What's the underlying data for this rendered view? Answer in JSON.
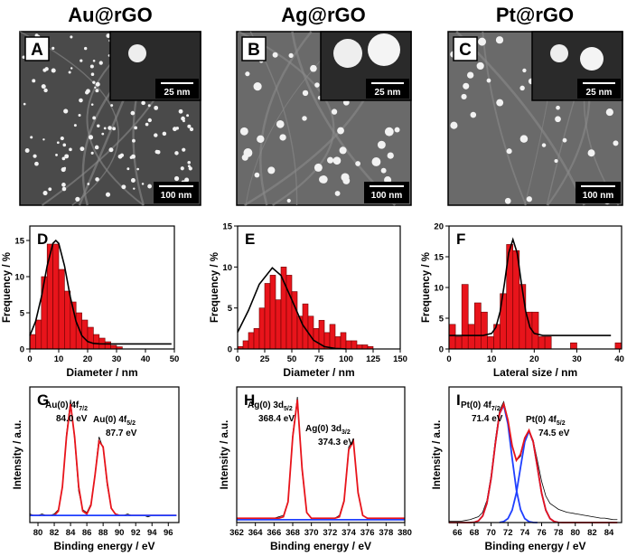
{
  "columns": [
    "Au@rGO",
    "Ag@rGO",
    "Pt@rGO"
  ],
  "images": [
    {
      "letter": "A",
      "inset_scale": "25 nm",
      "scale": "100 nm"
    },
    {
      "letter": "B",
      "inset_scale": "25 nm",
      "scale": "100 nm"
    },
    {
      "letter": "C",
      "inset_scale": "25 nm",
      "scale": "100 nm"
    }
  ],
  "chart_data": [
    {
      "type": "histogram",
      "letter": "D",
      "xlabel": "Diameter / nm",
      "ylabel": "Frequency / %",
      "color": "#e8141b",
      "bins": [
        0,
        2,
        4,
        6,
        8,
        10,
        12,
        14,
        16,
        18,
        20,
        22,
        24,
        26,
        28,
        30,
        32
      ],
      "values": [
        2,
        4,
        10,
        14.5,
        14.5,
        11,
        8,
        6.5,
        5,
        4,
        3,
        2,
        1.5,
        1,
        0.5,
        0.3
      ],
      "xlim": [
        0,
        50
      ],
      "xticks": [
        0,
        10,
        20,
        30,
        40,
        50
      ],
      "ylim": [
        0,
        17
      ],
      "yticks": [
        0,
        5,
        10,
        15
      ],
      "fit": {
        "color": "#000000",
        "x": [
          0,
          2,
          4,
          6,
          8,
          9,
          10,
          12,
          14,
          16,
          18,
          20,
          22,
          24,
          30,
          49
        ],
        "values": [
          1.84,
          3.8,
          7.2,
          11.5,
          14.6,
          15.0,
          14.6,
          11.5,
          7.2,
          3.8,
          1.84,
          1.03,
          0.77,
          0.71,
          0.7,
          0.7
        ]
      }
    },
    {
      "type": "histogram",
      "letter": "E",
      "xlabel": "Diameter / nm",
      "ylabel": "Frequency / %",
      "color": "#e8141b",
      "bins": [
        0,
        5,
        10,
        15,
        20,
        25,
        30,
        35,
        40,
        45,
        50,
        55,
        60,
        65,
        70,
        75,
        80,
        85,
        90,
        95,
        100,
        105,
        110,
        115,
        120,
        125
      ],
      "values": [
        0.3,
        1,
        2,
        2.5,
        5,
        8,
        9,
        6,
        10,
        9,
        7,
        4,
        5.5,
        4,
        2.5,
        3.5,
        2,
        3,
        1.5,
        2,
        1,
        1,
        0.5,
        0.5,
        0.3
      ],
      "xlim": [
        0,
        150
      ],
      "xticks": [
        0,
        25,
        50,
        75,
        100,
        125,
        150
      ],
      "ylim": [
        0,
        15
      ],
      "yticks": [
        0,
        5,
        10,
        15
      ],
      "fit": {
        "color": "#000000",
        "x": [
          0,
          10,
          20,
          32,
          40,
          50,
          60,
          70,
          80,
          90,
          100
        ],
        "values": [
          2.04,
          4.7,
          7.9,
          9.9,
          8.97,
          6.0,
          2.95,
          1.07,
          0.29,
          0.06,
          0.01
        ]
      }
    },
    {
      "type": "histogram",
      "letter": "F",
      "xlabel": "Lateral size / nm",
      "ylabel": "Frequency / %",
      "color": "#e8141b",
      "bins": [
        0,
        1.5,
        3,
        4.5,
        6,
        7.5,
        9,
        10.5,
        12,
        13.5,
        15,
        16.5,
        18,
        19.5,
        21,
        22.5,
        24,
        25.5,
        27,
        28.5,
        30,
        31.5,
        33,
        34.5,
        36,
        37.5,
        39,
        40.5
      ],
      "values": [
        4,
        2,
        10.5,
        4,
        7.5,
        6,
        2,
        4,
        9,
        17,
        16,
        10.5,
        6,
        6,
        2,
        2,
        0,
        0,
        0,
        1,
        0,
        0,
        0,
        0,
        0,
        0,
        1
      ],
      "xlim": [
        0,
        40.5
      ],
      "xticks": [
        0,
        10,
        20,
        30,
        40
      ],
      "ylim": [
        0,
        20
      ],
      "yticks": [
        0,
        5,
        10,
        15,
        20
      ],
      "fit": {
        "color": "#000000",
        "x": [
          0,
          8,
          10,
          11,
          12,
          13,
          14,
          15,
          16,
          17,
          18,
          19,
          20,
          22,
          38
        ],
        "values": [
          2.2,
          2.2,
          2.53,
          3.5,
          6.1,
          10.6,
          15.6,
          17.8,
          15.6,
          10.6,
          6.1,
          3.5,
          2.53,
          2.2,
          2.2
        ]
      }
    },
    {
      "type": "line",
      "letter": "G",
      "xlabel": "Binding energy / eV",
      "ylabel": "Intensity / a.u.",
      "x": [
        79,
        79.5,
        80,
        80.5,
        81,
        81.5,
        82,
        82.5,
        83,
        83.5,
        84,
        84.5,
        85,
        85.5,
        86,
        86.5,
        87,
        87.5,
        88,
        88.5,
        89,
        89.5,
        90,
        90.5,
        91,
        91.5,
        92,
        92.5,
        93,
        93.5,
        94,
        94.5,
        95,
        95.5,
        96,
        96.5,
        97
      ],
      "xlim": [
        79,
        97.3
      ],
      "xticks": [
        80,
        82,
        84,
        86,
        88,
        90,
        92,
        94,
        96
      ],
      "ylim": [
        0,
        0.95
      ],
      "series": [
        {
          "color": "#000000",
          "values": [
            0.06,
            0.05,
            0.05,
            0.06,
            0.05,
            0.05,
            0.06,
            0.09,
            0.24,
            0.62,
            0.86,
            0.58,
            0.22,
            0.09,
            0.07,
            0.13,
            0.34,
            0.6,
            0.52,
            0.26,
            0.1,
            0.06,
            0.05,
            0.05,
            0.06,
            0.05,
            0.05,
            0.05,
            0.05,
            0.04,
            0.05,
            0.05,
            0.05,
            0.05,
            0.05,
            0.05,
            0.05
          ]
        },
        {
          "color": "#e8141b",
          "values": [
            0.05,
            0.05,
            0.05,
            0.05,
            0.05,
            0.05,
            0.05,
            0.08,
            0.25,
            0.6,
            0.83,
            0.6,
            0.25,
            0.08,
            0.06,
            0.12,
            0.33,
            0.57,
            0.53,
            0.28,
            0.1,
            0.06,
            0.05,
            0.05,
            0.05,
            0.05,
            0.05,
            0.05,
            0.05,
            0.05,
            0.05,
            0.05,
            0.05,
            0.05,
            0.05,
            0.05,
            0.05
          ]
        },
        {
          "color": "#1f3fff",
          "x": [
            79,
            97
          ],
          "values": [
            0.05,
            0.05
          ]
        }
      ],
      "annotations": [
        {
          "text": "Au(0) 4f",
          "subscript": "7/2",
          "energy": "84.0 eV"
        },
        {
          "text": "Au(0) 4f",
          "subscript": "5/2",
          "energy": "87.7 eV"
        }
      ]
    },
    {
      "type": "line",
      "letter": "H",
      "xlabel": "Binding energy / eV",
      "ylabel": "Intensity / a.u.",
      "x": [
        362,
        362.5,
        363,
        363.5,
        364,
        364.5,
        365,
        365.5,
        366,
        366.5,
        367,
        367.5,
        368,
        368.5,
        369,
        369.5,
        370,
        370.5,
        371,
        371.5,
        372,
        372.5,
        373,
        373.5,
        374,
        374.5,
        375,
        375.5,
        376,
        376.5,
        377,
        377.5,
        378,
        378.5,
        379,
        379.5,
        380
      ],
      "xlim": [
        362,
        380
      ],
      "xticks": [
        362,
        364,
        366,
        368,
        370,
        372,
        374,
        376,
        378,
        380
      ],
      "ylim": [
        0,
        0.95
      ],
      "series": [
        {
          "color": "#000000",
          "values": [
            0.03,
            0.03,
            0.03,
            0.03,
            0.03,
            0.03,
            0.03,
            0.03,
            0.03,
            0.04,
            0.05,
            0.15,
            0.62,
            0.88,
            0.36,
            0.07,
            0.03,
            0.03,
            0.03,
            0.03,
            0.03,
            0.03,
            0.05,
            0.16,
            0.53,
            0.58,
            0.2,
            0.05,
            0.03,
            0.03,
            0.03,
            0.03,
            0.03,
            0.03,
            0.03,
            0.03,
            0.03
          ]
        },
        {
          "color": "#e8141b",
          "values": [
            0.03,
            0.03,
            0.03,
            0.03,
            0.03,
            0.03,
            0.03,
            0.03,
            0.03,
            0.03,
            0.04,
            0.145,
            0.6,
            0.86,
            0.38,
            0.07,
            0.03,
            0.03,
            0.03,
            0.03,
            0.03,
            0.03,
            0.04,
            0.15,
            0.51,
            0.57,
            0.21,
            0.05,
            0.03,
            0.03,
            0.03,
            0.03,
            0.03,
            0.03,
            0.03,
            0.03,
            0.03
          ]
        },
        {
          "color": "#1f3fff",
          "x": [
            362,
            380
          ],
          "values": [
            0.02,
            0.02
          ]
        }
      ],
      "annotations": [
        {
          "text": "Ag(0) 3d",
          "subscript": "5/2",
          "energy": "368.4 eV"
        },
        {
          "text": "Ag(0) 3d",
          "subscript": "3/2",
          "energy": "374.3 eV"
        }
      ]
    },
    {
      "type": "line",
      "letter": "I",
      "xlabel": "Binding energy / eV",
      "ylabel": "Intensity / a.u.",
      "x": [
        65,
        65.5,
        66,
        66.5,
        67,
        67.5,
        68,
        68.5,
        69,
        69.5,
        70,
        70.5,
        71,
        71.5,
        72,
        72.5,
        73,
        73.5,
        74,
        74.5,
        75,
        75.5,
        76,
        76.5,
        77,
        77.5,
        78,
        78.5,
        79,
        79.5,
        80,
        80.5,
        81,
        81.5,
        82,
        82.5,
        83,
        83.5,
        84,
        84.5,
        85
      ],
      "xlim": [
        65,
        85.5
      ],
      "xticks": [
        66,
        68,
        70,
        72,
        74,
        76,
        78,
        80,
        82,
        84
      ],
      "ylim": [
        0,
        0.92
      ],
      "series": [
        {
          "color": "#000000",
          "values": [
            0.01,
            0.01,
            0.01,
            0.01,
            0.015,
            0.02,
            0.03,
            0.04,
            0.07,
            0.15,
            0.32,
            0.56,
            0.76,
            0.82,
            0.7,
            0.52,
            0.42,
            0.45,
            0.57,
            0.62,
            0.56,
            0.42,
            0.28,
            0.18,
            0.13,
            0.11,
            0.09,
            0.08,
            0.07,
            0.065,
            0.06,
            0.055,
            0.05,
            0.045,
            0.04,
            0.035,
            0.03,
            0.03,
            0.025,
            0.02,
            0.02
          ]
        },
        {
          "color": "#1f3fff",
          "x": [
            68,
            68.5,
            69,
            69.5,
            70,
            70.5,
            71,
            71.5,
            72,
            72.5,
            73,
            73.5,
            74,
            74.5,
            75,
            75.5
          ],
          "values": [
            0.002,
            0.012,
            0.045,
            0.131,
            0.3,
            0.534,
            0.738,
            0.796,
            0.668,
            0.437,
            0.222,
            0.088,
            0.027,
            0.006,
            0.001,
            0
          ]
        },
        {
          "color": "#1f3fff",
          "x": [
            71,
            71.5,
            72,
            72.5,
            73,
            73.5,
            74,
            74.5,
            75,
            75.5,
            76,
            76.5,
            77,
            77.5,
            78
          ],
          "values": [
            0.001,
            0.007,
            0.027,
            0.084,
            0.2,
            0.376,
            0.547,
            0.62,
            0.547,
            0.376,
            0.2,
            0.084,
            0.027,
            0.007,
            0.001
          ]
        },
        {
          "color": "#e8141b",
          "values": [
            0,
            0,
            0,
            0,
            0,
            0,
            0.002,
            0.012,
            0.045,
            0.131,
            0.3,
            0.534,
            0.739,
            0.803,
            0.695,
            0.521,
            0.422,
            0.464,
            0.574,
            0.626,
            0.548,
            0.376,
            0.2,
            0.084,
            0.027,
            0.007,
            0.001,
            0,
            0,
            0,
            0,
            0,
            0,
            0,
            0,
            0,
            0,
            0,
            0,
            0,
            0
          ]
        }
      ],
      "annotations": [
        {
          "text": "Pt(0) 4f",
          "subscript": "7/2",
          "energy": "71.4 eV"
        },
        {
          "text": "Pt(0) 4f",
          "subscript": "5/2",
          "energy": "74.5 eV"
        }
      ]
    }
  ]
}
